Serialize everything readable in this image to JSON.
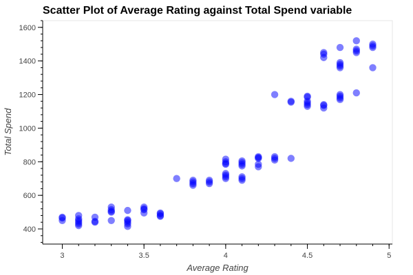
{
  "chart_data": {
    "type": "scatter",
    "title": "Scatter Plot of Average Rating against Total Spend variable",
    "xlabel": "Average Rating",
    "ylabel": "Total Spend",
    "xlim": [
      2.88,
      5.02
    ],
    "ylim": [
      310,
      1640
    ],
    "xticks": [
      3,
      3.5,
      4,
      4.5,
      5
    ],
    "xtick_labels": [
      "3",
      "3.5",
      "4",
      "4.5",
      "5"
    ],
    "yticks": [
      400,
      600,
      800,
      1000,
      1200,
      1400,
      1600
    ],
    "ytick_labels": [
      "400",
      "600",
      "800",
      "1000",
      "1200",
      "1400",
      "1600"
    ],
    "grid": false,
    "point_color": "#0000ff",
    "point_opacity": 0.5,
    "points": [
      {
        "x": 3.0,
        "y": 450
      },
      {
        "x": 3.0,
        "y": 465
      },
      {
        "x": 3.0,
        "y": 470
      },
      {
        "x": 3.1,
        "y": 420
      },
      {
        "x": 3.1,
        "y": 430
      },
      {
        "x": 3.1,
        "y": 440
      },
      {
        "x": 3.1,
        "y": 450
      },
      {
        "x": 3.1,
        "y": 460
      },
      {
        "x": 3.1,
        "y": 480
      },
      {
        "x": 3.2,
        "y": 440
      },
      {
        "x": 3.2,
        "y": 445
      },
      {
        "x": 3.2,
        "y": 470
      },
      {
        "x": 3.3,
        "y": 450
      },
      {
        "x": 3.3,
        "y": 500
      },
      {
        "x": 3.3,
        "y": 505
      },
      {
        "x": 3.3,
        "y": 515
      },
      {
        "x": 3.3,
        "y": 530
      },
      {
        "x": 3.4,
        "y": 415
      },
      {
        "x": 3.4,
        "y": 430
      },
      {
        "x": 3.4,
        "y": 440
      },
      {
        "x": 3.4,
        "y": 450
      },
      {
        "x": 3.4,
        "y": 455
      },
      {
        "x": 3.4,
        "y": 510
      },
      {
        "x": 3.5,
        "y": 495
      },
      {
        "x": 3.5,
        "y": 515
      },
      {
        "x": 3.5,
        "y": 520
      },
      {
        "x": 3.5,
        "y": 530
      },
      {
        "x": 3.6,
        "y": 475
      },
      {
        "x": 3.6,
        "y": 480
      },
      {
        "x": 3.6,
        "y": 490
      },
      {
        "x": 3.6,
        "y": 495
      },
      {
        "x": 3.7,
        "y": 700
      },
      {
        "x": 3.8,
        "y": 660
      },
      {
        "x": 3.8,
        "y": 670
      },
      {
        "x": 3.8,
        "y": 680
      },
      {
        "x": 3.8,
        "y": 690
      },
      {
        "x": 3.9,
        "y": 670
      },
      {
        "x": 3.9,
        "y": 680
      },
      {
        "x": 3.9,
        "y": 690
      },
      {
        "x": 4.0,
        "y": 700
      },
      {
        "x": 4.0,
        "y": 710
      },
      {
        "x": 4.0,
        "y": 720
      },
      {
        "x": 4.0,
        "y": 730
      },
      {
        "x": 4.0,
        "y": 785
      },
      {
        "x": 4.0,
        "y": 790
      },
      {
        "x": 4.0,
        "y": 800
      },
      {
        "x": 4.0,
        "y": 815
      },
      {
        "x": 4.1,
        "y": 690
      },
      {
        "x": 4.1,
        "y": 700
      },
      {
        "x": 4.1,
        "y": 710
      },
      {
        "x": 4.1,
        "y": 775
      },
      {
        "x": 4.1,
        "y": 785
      },
      {
        "x": 4.1,
        "y": 795
      },
      {
        "x": 4.1,
        "y": 805
      },
      {
        "x": 4.2,
        "y": 770
      },
      {
        "x": 4.2,
        "y": 785
      },
      {
        "x": 4.2,
        "y": 820
      },
      {
        "x": 4.2,
        "y": 825
      },
      {
        "x": 4.2,
        "y": 830
      },
      {
        "x": 4.3,
        "y": 810
      },
      {
        "x": 4.3,
        "y": 820
      },
      {
        "x": 4.3,
        "y": 830
      },
      {
        "x": 4.3,
        "y": 1200
      },
      {
        "x": 4.4,
        "y": 820
      },
      {
        "x": 4.4,
        "y": 1155
      },
      {
        "x": 4.4,
        "y": 1160
      },
      {
        "x": 4.5,
        "y": 1130
      },
      {
        "x": 4.5,
        "y": 1140
      },
      {
        "x": 4.5,
        "y": 1150
      },
      {
        "x": 4.5,
        "y": 1160
      },
      {
        "x": 4.5,
        "y": 1185
      },
      {
        "x": 4.5,
        "y": 1190
      },
      {
        "x": 4.6,
        "y": 1120
      },
      {
        "x": 4.6,
        "y": 1135
      },
      {
        "x": 4.6,
        "y": 1140
      },
      {
        "x": 4.6,
        "y": 1420
      },
      {
        "x": 4.6,
        "y": 1440
      },
      {
        "x": 4.6,
        "y": 1450
      },
      {
        "x": 4.7,
        "y": 1170
      },
      {
        "x": 4.7,
        "y": 1180
      },
      {
        "x": 4.7,
        "y": 1190
      },
      {
        "x": 4.7,
        "y": 1200
      },
      {
        "x": 4.7,
        "y": 1360
      },
      {
        "x": 4.7,
        "y": 1370
      },
      {
        "x": 4.7,
        "y": 1380
      },
      {
        "x": 4.7,
        "y": 1390
      },
      {
        "x": 4.7,
        "y": 1480
      },
      {
        "x": 4.8,
        "y": 1210
      },
      {
        "x": 4.8,
        "y": 1450
      },
      {
        "x": 4.8,
        "y": 1460
      },
      {
        "x": 4.8,
        "y": 1470
      },
      {
        "x": 4.8,
        "y": 1520
      },
      {
        "x": 4.9,
        "y": 1360
      },
      {
        "x": 4.9,
        "y": 1480
      },
      {
        "x": 4.9,
        "y": 1490
      },
      {
        "x": 4.9,
        "y": 1500
      }
    ]
  }
}
